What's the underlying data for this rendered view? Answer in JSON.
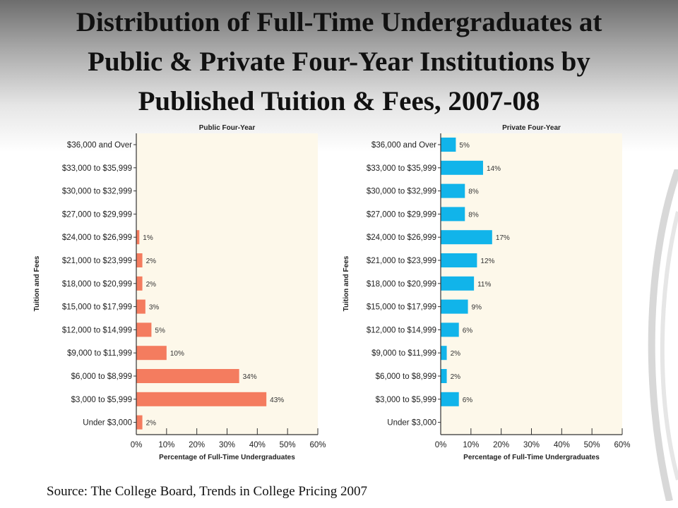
{
  "title": {
    "lines": [
      "Distribution of Full-Time Undergraduates at",
      "Public & Private Four-Year Institutions by",
      "Published Tuition & Fees, 2007-08"
    ]
  },
  "source": "Source: The College Board, Trends in College Pricing 2007",
  "colors": {
    "public_bar": "#f47c5f",
    "private_bar": "#11b4ea",
    "plot_bg": "#fdf8ea"
  },
  "chart_data": [
    {
      "type": "bar",
      "orientation": "horizontal",
      "title": "Public Four-Year",
      "xlabel": "Percentage of Full-Time Undergraduates",
      "ylabel": "Tuition and Fees",
      "xlim": [
        0,
        60
      ],
      "xticks": [
        "0%",
        "10%",
        "20%",
        "30%",
        "40%",
        "50%",
        "60%"
      ],
      "categories": [
        "$36,000 and Over",
        "$33,000 to $35,999",
        "$30,000 to $32,999",
        "$27,000 to $29,999",
        "$24,000 to $26,999",
        "$21,000 to $23,999",
        "$18,000 to $20,999",
        "$15,000 to $17,999",
        "$12,000 to $14,999",
        "$9,000 to $11,999",
        "$6,000 to $8,999",
        "$3,000 to $5,999",
        "Under $3,000"
      ],
      "values": [
        0,
        0,
        0,
        0,
        1,
        2,
        2,
        3,
        5,
        10,
        34,
        43,
        2
      ],
      "labels": [
        "",
        "",
        "",
        "",
        "1%",
        "2%",
        "2%",
        "3%",
        "5%",
        "10%",
        "34%",
        "43%",
        "2%"
      ],
      "grid": false,
      "legend": "none"
    },
    {
      "type": "bar",
      "orientation": "horizontal",
      "title": "Private Four-Year",
      "xlabel": "Percentage of Full-Time Undergraduates",
      "ylabel": "Tuition and Fees",
      "xlim": [
        0,
        60
      ],
      "xticks": [
        "0%",
        "10%",
        "20%",
        "30%",
        "40%",
        "50%",
        "60%"
      ],
      "categories": [
        "$36,000 and Over",
        "$33,000 to $35,999",
        "$30,000 to $32,999",
        "$27,000 to $29,999",
        "$24,000 to $26,999",
        "$21,000 to $23,999",
        "$18,000 to $20,999",
        "$15,000 to $17,999",
        "$12,000 to $14,999",
        "$9,000 to $11,999",
        "$6,000 to $8,999",
        "$3,000 to $5,999",
        "Under $3,000"
      ],
      "values": [
        5,
        14,
        8,
        8,
        17,
        12,
        11,
        9,
        6,
        2,
        2,
        6,
        0
      ],
      "labels": [
        "5%",
        "14%",
        "8%",
        "8%",
        "17%",
        "12%",
        "11%",
        "9%",
        "6%",
        "2%",
        "2%",
        "6%",
        ""
      ],
      "grid": false,
      "legend": "none"
    }
  ]
}
